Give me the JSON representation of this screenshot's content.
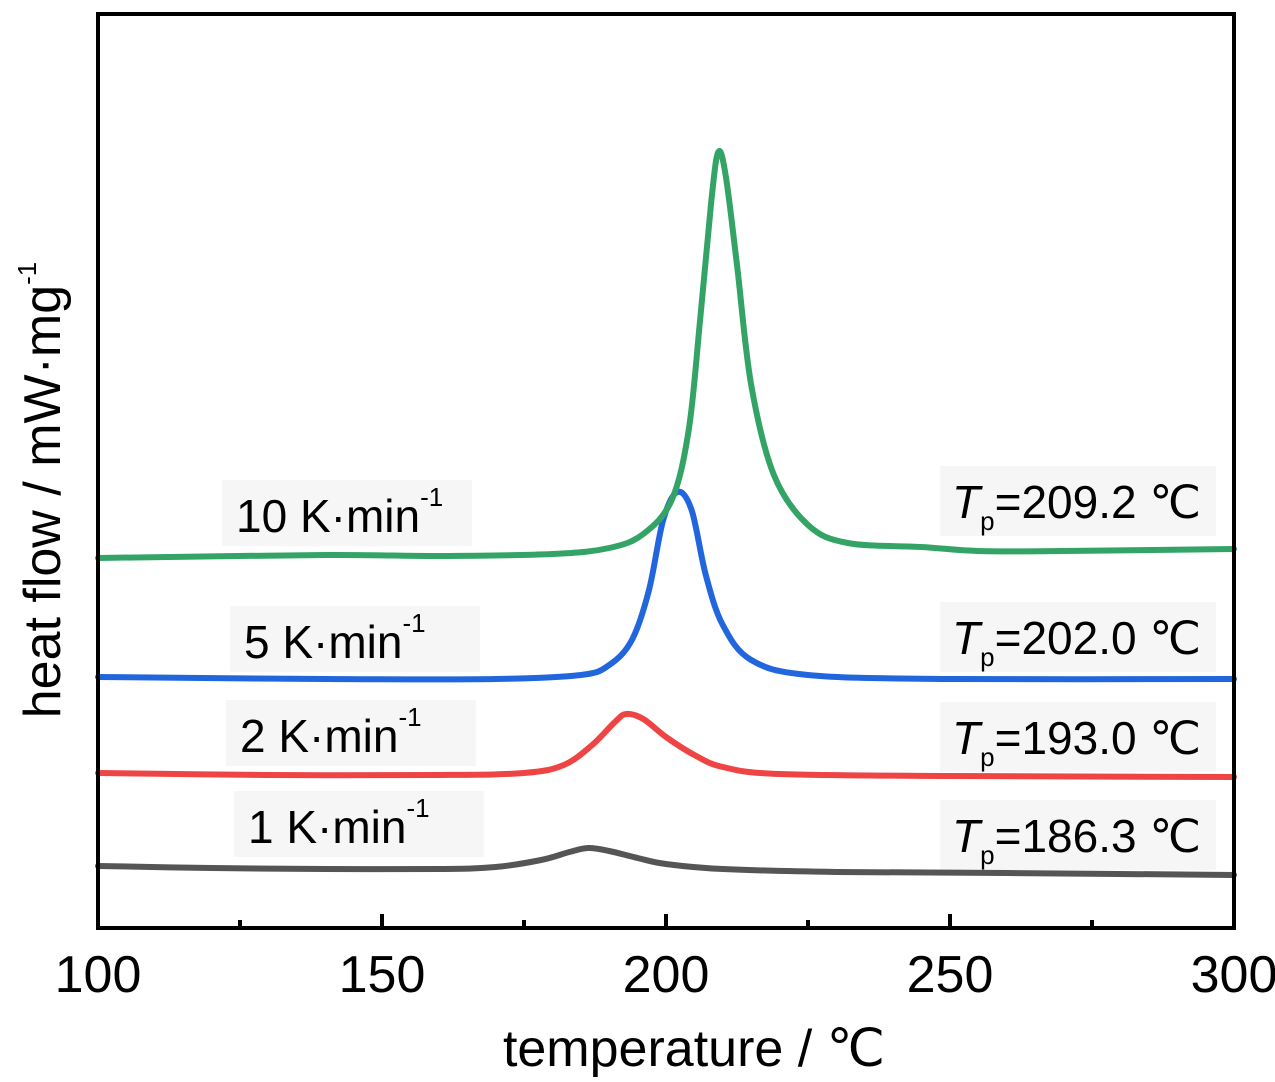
{
  "chart_data": {
    "type": "line",
    "xlabel": "temperature / ℃",
    "ylabel": "heat flow / mW·mg",
    "ylabel_sup": "-1",
    "xlim": [
      100,
      300
    ],
    "xticks_major": [
      100,
      150,
      200,
      250,
      300
    ],
    "xticks_minor": [
      125,
      175,
      225,
      275
    ],
    "grid": false,
    "series": [
      {
        "name": "1 K·min",
        "name_sup": "-1",
        "peak_label": "=186.3 ℃",
        "peak_T": 186.3,
        "color": "#555555",
        "points": [
          [
            100,
            866
          ],
          [
            120,
            868
          ],
          [
            140,
            869
          ],
          [
            160,
            869
          ],
          [
            170,
            867
          ],
          [
            178,
            860
          ],
          [
            183,
            852
          ],
          [
            186.3,
            848
          ],
          [
            190,
            851
          ],
          [
            195,
            858
          ],
          [
            200,
            864
          ],
          [
            210,
            869
          ],
          [
            230,
            872
          ],
          [
            260,
            873
          ],
          [
            300,
            875
          ]
        ]
      },
      {
        "name": "2 K·min",
        "name_sup": "-1",
        "peak_label": "=193.0 ℃",
        "peak_T": 193.0,
        "color": "#ee4444",
        "points": [
          [
            100,
            773
          ],
          [
            130,
            775
          ],
          [
            160,
            775
          ],
          [
            175,
            773
          ],
          [
            182,
            765
          ],
          [
            187,
            745
          ],
          [
            191,
            722
          ],
          [
            193,
            714
          ],
          [
            196,
            719
          ],
          [
            200,
            737
          ],
          [
            205,
            755
          ],
          [
            210,
            767
          ],
          [
            220,
            774
          ],
          [
            250,
            776
          ],
          [
            300,
            777
          ]
        ]
      },
      {
        "name": "5 K·min",
        "name_sup": "-1",
        "peak_label": "=202.0 ℃",
        "peak_T": 202.0,
        "color": "#2266dd",
        "points": [
          [
            100,
            677
          ],
          [
            140,
            679
          ],
          [
            170,
            679
          ],
          [
            185,
            675
          ],
          [
            190,
            665
          ],
          [
            194,
            640
          ],
          [
            197,
            590
          ],
          [
            199.5,
            520
          ],
          [
            202,
            492
          ],
          [
            204.5,
            510
          ],
          [
            207,
            575
          ],
          [
            210,
            625
          ],
          [
            215,
            660
          ],
          [
            225,
            675
          ],
          [
            250,
            679
          ],
          [
            300,
            679
          ]
        ]
      },
      {
        "name": "10 K·min",
        "name_sup": "-1",
        "peak_label": "=209.2 ℃",
        "peak_T": 209.2,
        "color": "#33a466",
        "points": [
          [
            100,
            558
          ],
          [
            140,
            555
          ],
          [
            160,
            556
          ],
          [
            180,
            554
          ],
          [
            190,
            548
          ],
          [
            196,
            534
          ],
          [
            201,
            500
          ],
          [
            204,
            430
          ],
          [
            206,
            320
          ],
          [
            208,
            200
          ],
          [
            209.2,
            152
          ],
          [
            210.5,
            175
          ],
          [
            212.5,
            265
          ],
          [
            215,
            385
          ],
          [
            219,
            475
          ],
          [
            225,
            525
          ],
          [
            232,
            543
          ],
          [
            245,
            547
          ],
          [
            255,
            551
          ],
          [
            270,
            551
          ],
          [
            300,
            549
          ]
        ]
      }
    ]
  }
}
